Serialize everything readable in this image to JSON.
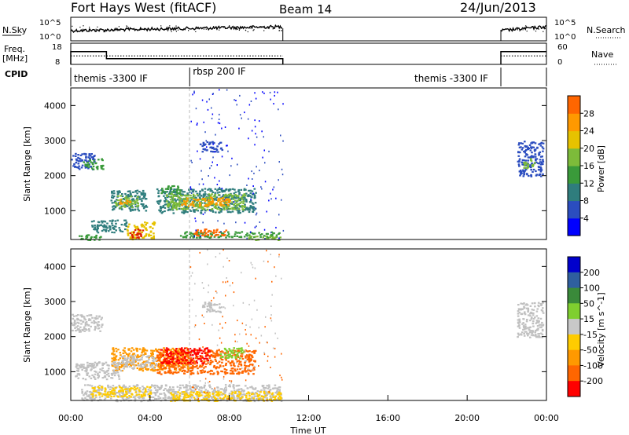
{
  "header": {
    "station": "Fort Hays West (fitACF)",
    "beam": "Beam 14",
    "date": "24/Jun/2013"
  },
  "colors": {
    "power": [
      "#0000ff",
      "#2b4dbf",
      "#2f7d7d",
      "#3a9a3a",
      "#7dbb3a",
      "#e6c200",
      "#ff9900",
      "#ff6600",
      "#e02000"
    ],
    "velocity": [
      "#ff0000",
      "#ff6600",
      "#ff9900",
      "#ffcc00",
      "#c8c8c8",
      "#7fcf2f",
      "#3a8a3a",
      "#2f5f9f",
      "#0000cc"
    ],
    "scatter_gray": "#c0c0c0"
  },
  "chart_data": [
    {
      "type": "line",
      "name": "noise-panel",
      "left_label": "N.Sky",
      "left_ticks": [
        "10^5",
        "10^0"
      ],
      "right_label": "N.Search",
      "right_ticks": [
        "10^5",
        "10^0"
      ],
      "xlim": [
        0,
        24
      ],
      "segments": [
        [
          0,
          10.7
        ],
        [
          21.7,
          24
        ]
      ]
    },
    {
      "type": "line",
      "name": "freq-panel",
      "left_label": "Freq.",
      "left_unit": "[MHz]",
      "left_ticks": [
        18,
        8
      ],
      "right_label": "Nave",
      "right_ticks": [
        60,
        0
      ],
      "freq_series": [
        {
          "x0": 0,
          "x1": 1.8,
          "y": 14
        },
        {
          "x0": 1.8,
          "x1": 10.7,
          "y": 10.7
        },
        {
          "x0": 21.7,
          "x1": 24,
          "y": 14
        }
      ],
      "nave_series": [
        {
          "x0": 0,
          "x1": 10.7,
          "y": 12
        },
        {
          "x0": 21.7,
          "x1": 24,
          "y": 12
        }
      ]
    },
    {
      "type": "table",
      "name": "cpid-panel",
      "label": "CPID",
      "entries": [
        {
          "start": 0,
          "text": "themis -3300 IF"
        },
        {
          "start": 6.0,
          "text": "rbsp 200 IF"
        },
        {
          "start": 21.7,
          "text": "themis -3300 IF"
        }
      ],
      "boundaries": [
        6.0,
        21.7
      ]
    },
    {
      "type": "heatmap",
      "name": "power-panel",
      "ylabel": "Slant Range [km]",
      "ylim": [
        180,
        4500
      ],
      "yticks": [
        1000,
        2000,
        3000,
        4000
      ],
      "colorbar_label": "Power [dB]",
      "colorbar_ticks": [
        4,
        8,
        12,
        16,
        20,
        24,
        28
      ],
      "regions": [
        {
          "x0": 0.0,
          "x1": 1.2,
          "y0": 2200,
          "y1": 2650,
          "level": 1
        },
        {
          "x0": 0.6,
          "x1": 1.6,
          "y0": 2200,
          "y1": 2500,
          "level": 3
        },
        {
          "x0": 2.0,
          "x1": 3.8,
          "y0": 1000,
          "y1": 1600,
          "level": 2
        },
        {
          "x0": 2.2,
          "x1": 3.4,
          "y0": 1100,
          "y1": 1450,
          "level": 4
        },
        {
          "x0": 2.4,
          "x1": 3.0,
          "y0": 1200,
          "y1": 1350,
          "level": 6
        },
        {
          "x0": 4.3,
          "x1": 9.3,
          "y0": 950,
          "y1": 1650,
          "level": 2
        },
        {
          "x0": 4.8,
          "x1": 8.8,
          "y0": 1050,
          "y1": 1500,
          "level": 4
        },
        {
          "x0": 5.5,
          "x1": 8.0,
          "y0": 1150,
          "y1": 1400,
          "level": 6
        },
        {
          "x0": 4.5,
          "x1": 5.5,
          "y0": 1500,
          "y1": 1750,
          "level": 3
        },
        {
          "x0": 2.8,
          "x1": 4.2,
          "y0": 200,
          "y1": 700,
          "level": 5
        },
        {
          "x0": 2.9,
          "x1": 3.6,
          "y0": 250,
          "y1": 500,
          "level": 8
        },
        {
          "x0": 1.0,
          "x1": 2.8,
          "y0": 400,
          "y1": 750,
          "level": 2
        },
        {
          "x0": 0.1,
          "x1": 1.5,
          "y0": 180,
          "y1": 330,
          "level": 3
        },
        {
          "x0": 5.5,
          "x1": 10.6,
          "y0": 250,
          "y1": 420,
          "level": 3
        },
        {
          "x0": 6.2,
          "x1": 7.8,
          "y0": 300,
          "y1": 500,
          "level": 7
        },
        {
          "x0": 8.8,
          "x1": 10.6,
          "y0": 180,
          "y1": 300,
          "level": 4
        },
        {
          "x0": 6.5,
          "x1": 7.6,
          "y0": 2700,
          "y1": 3000,
          "level": 1
        },
        {
          "x0": 22.5,
          "x1": 23.8,
          "y0": 2000,
          "y1": 3000,
          "level": 1
        },
        {
          "x0": 22.8,
          "x1": 23.4,
          "y0": 2200,
          "y1": 2500,
          "level": 4
        }
      ]
    },
    {
      "type": "heatmap",
      "name": "velocity-panel",
      "ylabel": "Slant Range [km]",
      "ylim": [
        180,
        4500
      ],
      "yticks": [
        1000,
        2000,
        3000,
        4000
      ],
      "xlabel": "Time UT",
      "xticks": [
        "00:00",
        "04:00",
        "08:00",
        "12:00",
        "16:00",
        "20:00",
        "00:00"
      ],
      "xlim": [
        0,
        24
      ],
      "colorbar_label": "Velocity [m s^-1]",
      "colorbar_ticks": [
        200,
        100,
        50,
        15,
        -15,
        -50,
        -100,
        -200
      ],
      "regions": [
        {
          "x0": 0.0,
          "x1": 1.6,
          "y0": 2150,
          "y1": 2650,
          "level": "gray"
        },
        {
          "x0": 2.0,
          "x1": 6.0,
          "y0": 1050,
          "y1": 1700,
          "level": 2
        },
        {
          "x0": 4.3,
          "x1": 9.3,
          "y0": 950,
          "y1": 1650,
          "level": 1
        },
        {
          "x0": 4.5,
          "x1": 7.0,
          "y0": 1250,
          "y1": 1700,
          "level": 0
        },
        {
          "x0": 7.5,
          "x1": 8.7,
          "y0": 1400,
          "y1": 1700,
          "level": 5
        },
        {
          "x0": 2.5,
          "x1": 4.3,
          "y0": 1100,
          "y1": 1500,
          "level": "gray"
        },
        {
          "x0": 0.2,
          "x1": 2.5,
          "y0": 800,
          "y1": 1300,
          "level": "gray"
        },
        {
          "x0": 0.5,
          "x1": 10.6,
          "y0": 180,
          "y1": 650,
          "level": "gray"
        },
        {
          "x0": 1.0,
          "x1": 4.0,
          "y0": 300,
          "y1": 600,
          "level": 3
        },
        {
          "x0": 5.0,
          "x1": 10.6,
          "y0": 180,
          "y1": 450,
          "level": 3
        },
        {
          "x0": 6.5,
          "x1": 7.6,
          "y0": 2700,
          "y1": 3000,
          "level": "gray"
        },
        {
          "x0": 22.5,
          "x1": 23.8,
          "y0": 2000,
          "y1": 3000,
          "level": "gray"
        }
      ]
    }
  ]
}
